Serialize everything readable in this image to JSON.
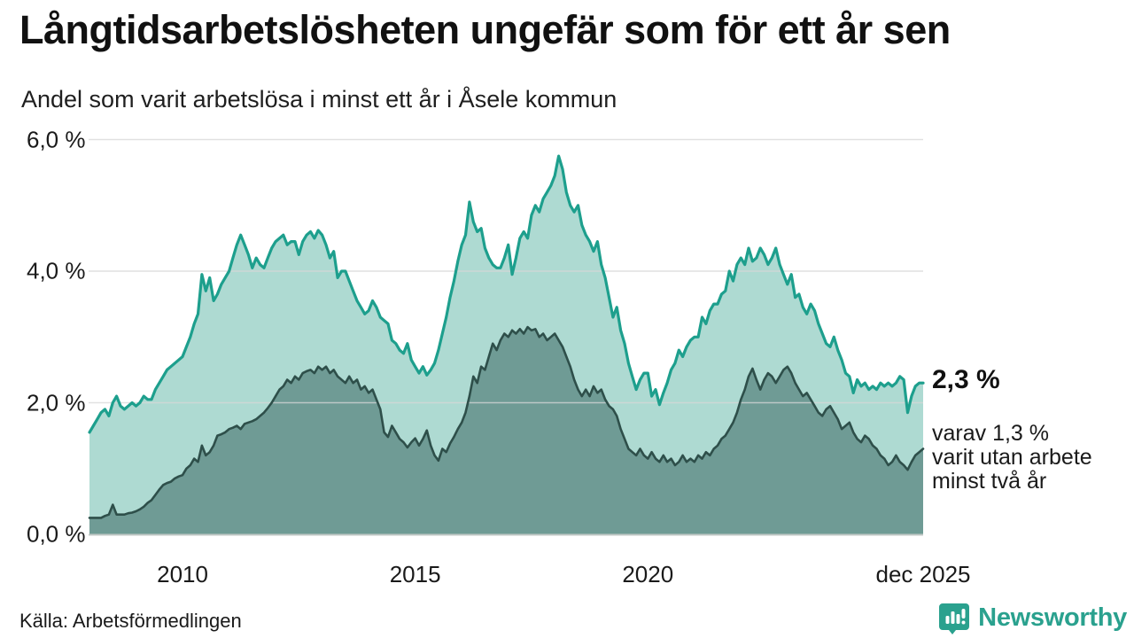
{
  "header": {
    "title": "Långtidsarbetslösheten ungefär som för ett år sen",
    "subtitle": "Andel som varit arbetslösa i minst ett år i Åsele kommun"
  },
  "annotation": {
    "value_label": "2,3 %",
    "detail_lines": [
      "varav 1,3 %",
      "varit utan arbete",
      "minst två år"
    ]
  },
  "footer": {
    "source": "Källa: Arbetsförmedlingen",
    "brand": "Newsworthy"
  },
  "colors": {
    "accent_teal": "#1d9f8d",
    "light_fill": "#aedad2",
    "dark_line": "#2e4f4a",
    "dark_fill": "#6f9b95",
    "gridline": "#d8d8d8",
    "baseline": "#c0c8c5",
    "brand_teal": "#2aa18e",
    "text": "#1a1a1a"
  },
  "chart_data": {
    "type": "area",
    "title": "Långtidsarbetslösheten ungefär som för ett år sen",
    "subtitle": "Andel som varit arbetslösa i minst ett år i Åsele kommun",
    "interval": "monthly",
    "x_start": "2008-01",
    "x_end": "2025-12",
    "ylim": [
      0,
      6
    ],
    "grid": true,
    "legend_position": "annotated-at-line-end",
    "yticks": [
      {
        "value": 6,
        "label": "6,0 %"
      },
      {
        "value": 4,
        "label": "4,0 %"
      },
      {
        "value": 2,
        "label": "2,0 %"
      },
      {
        "value": 0,
        "label": "0,0 %"
      }
    ],
    "xticks": [
      {
        "year": 2010.0,
        "label": "2010"
      },
      {
        "year": 2015.0,
        "label": "2015"
      },
      {
        "year": 2020.0,
        "label": "2020"
      },
      {
        "year": 2025.917,
        "label": "dec 2025"
      }
    ],
    "series": [
      {
        "name": "Arbetslösa minst ett år",
        "latest_value_pct": 2.3,
        "line_color": "#1d9f8d",
        "fill_color": "#aedad2",
        "line_width": 3.2,
        "values": [
          1.55,
          1.65,
          1.75,
          1.85,
          1.9,
          1.8,
          2.0,
          2.1,
          1.95,
          1.9,
          1.95,
          2.0,
          1.95,
          2.0,
          2.1,
          2.05,
          2.05,
          2.2,
          2.3,
          2.4,
          2.5,
          2.55,
          2.6,
          2.65,
          2.7,
          2.85,
          3.0,
          3.2,
          3.35,
          3.95,
          3.7,
          3.9,
          3.55,
          3.65,
          3.8,
          3.9,
          4.0,
          4.2,
          4.4,
          4.55,
          4.4,
          4.25,
          4.05,
          4.2,
          4.1,
          4.05,
          4.2,
          4.35,
          4.45,
          4.5,
          4.55,
          4.4,
          4.45,
          4.45,
          4.25,
          4.45,
          4.55,
          4.6,
          4.5,
          4.62,
          4.55,
          4.4,
          4.2,
          4.3,
          3.9,
          4.0,
          4.0,
          3.85,
          3.7,
          3.55,
          3.45,
          3.35,
          3.4,
          3.55,
          3.45,
          3.3,
          3.25,
          3.2,
          2.95,
          2.9,
          2.8,
          2.75,
          2.9,
          2.65,
          2.55,
          2.45,
          2.55,
          2.42,
          2.5,
          2.6,
          2.8,
          3.05,
          3.3,
          3.6,
          3.85,
          4.15,
          4.4,
          4.55,
          5.05,
          4.75,
          4.6,
          4.65,
          4.35,
          4.2,
          4.1,
          4.05,
          4.05,
          4.2,
          4.4,
          3.95,
          4.2,
          4.5,
          4.6,
          4.5,
          4.85,
          5.0,
          4.9,
          5.1,
          5.2,
          5.3,
          5.45,
          5.75,
          5.55,
          5.2,
          5.0,
          4.9,
          5.0,
          4.7,
          4.55,
          4.45,
          4.3,
          4.45,
          4.1,
          3.9,
          3.6,
          3.3,
          3.45,
          3.1,
          2.9,
          2.6,
          2.4,
          2.2,
          2.35,
          2.45,
          2.45,
          2.1,
          2.2,
          1.97,
          2.15,
          2.3,
          2.5,
          2.6,
          2.8,
          2.7,
          2.85,
          2.95,
          3.0,
          3.0,
          3.3,
          3.2,
          3.4,
          3.5,
          3.5,
          3.65,
          3.7,
          4.0,
          3.85,
          4.1,
          4.2,
          4.1,
          4.35,
          4.15,
          4.2,
          4.35,
          4.25,
          4.1,
          4.2,
          4.35,
          4.1,
          3.95,
          3.8,
          3.95,
          3.6,
          3.65,
          3.45,
          3.35,
          3.5,
          3.4,
          3.2,
          3.05,
          2.9,
          2.85,
          3.0,
          2.8,
          2.65,
          2.45,
          2.4,
          2.15,
          2.35,
          2.25,
          2.3,
          2.2,
          2.25,
          2.2,
          2.3,
          2.25,
          2.3,
          2.25,
          2.3,
          2.4,
          2.35,
          1.85,
          2.1,
          2.25,
          2.3,
          2.3
        ]
      },
      {
        "name": "Arbetslösa minst två år",
        "latest_value_pct": 1.3,
        "line_color": "#2e4f4a",
        "fill_color": "#6f9b95",
        "line_width": 2.6,
        "values": [
          0.25,
          0.25,
          0.25,
          0.25,
          0.28,
          0.3,
          0.45,
          0.3,
          0.3,
          0.3,
          0.32,
          0.33,
          0.35,
          0.38,
          0.42,
          0.48,
          0.52,
          0.6,
          0.68,
          0.75,
          0.78,
          0.8,
          0.85,
          0.88,
          0.9,
          1.0,
          1.05,
          1.15,
          1.1,
          1.35,
          1.2,
          1.25,
          1.35,
          1.5,
          1.52,
          1.55,
          1.6,
          1.62,
          1.65,
          1.6,
          1.68,
          1.7,
          1.72,
          1.75,
          1.8,
          1.85,
          1.92,
          2.0,
          2.1,
          2.2,
          2.25,
          2.35,
          2.3,
          2.4,
          2.35,
          2.45,
          2.48,
          2.5,
          2.45,
          2.55,
          2.5,
          2.55,
          2.45,
          2.5,
          2.4,
          2.35,
          2.3,
          2.4,
          2.3,
          2.35,
          2.2,
          2.25,
          2.15,
          2.2,
          2.05,
          1.9,
          1.55,
          1.48,
          1.65,
          1.55,
          1.45,
          1.4,
          1.32,
          1.4,
          1.46,
          1.35,
          1.45,
          1.58,
          1.35,
          1.2,
          1.12,
          1.3,
          1.25,
          1.38,
          1.48,
          1.6,
          1.7,
          1.85,
          2.1,
          2.4,
          2.3,
          2.55,
          2.5,
          2.7,
          2.9,
          2.8,
          2.95,
          3.05,
          3.0,
          3.1,
          3.05,
          3.12,
          3.05,
          3.15,
          3.1,
          3.12,
          3.0,
          3.05,
          2.95,
          3.0,
          3.05,
          2.95,
          2.85,
          2.7,
          2.55,
          2.35,
          2.2,
          2.1,
          2.2,
          2.1,
          2.25,
          2.15,
          2.2,
          2.05,
          1.95,
          1.9,
          1.8,
          1.6,
          1.45,
          1.3,
          1.25,
          1.2,
          1.3,
          1.2,
          1.15,
          1.25,
          1.15,
          1.1,
          1.2,
          1.1,
          1.15,
          1.05,
          1.1,
          1.2,
          1.1,
          1.15,
          1.1,
          1.2,
          1.15,
          1.25,
          1.2,
          1.3,
          1.35,
          1.45,
          1.5,
          1.6,
          1.7,
          1.85,
          2.05,
          2.2,
          2.4,
          2.52,
          2.35,
          2.2,
          2.35,
          2.45,
          2.4,
          2.3,
          2.4,
          2.5,
          2.55,
          2.45,
          2.3,
          2.2,
          2.1,
          2.15,
          2.05,
          1.95,
          1.85,
          1.8,
          1.9,
          1.95,
          1.85,
          1.75,
          1.6,
          1.65,
          1.7,
          1.55,
          1.45,
          1.4,
          1.5,
          1.45,
          1.35,
          1.3,
          1.2,
          1.15,
          1.05,
          1.1,
          1.2,
          1.1,
          1.05,
          0.98,
          1.1,
          1.2,
          1.25,
          1.3
        ]
      }
    ]
  }
}
